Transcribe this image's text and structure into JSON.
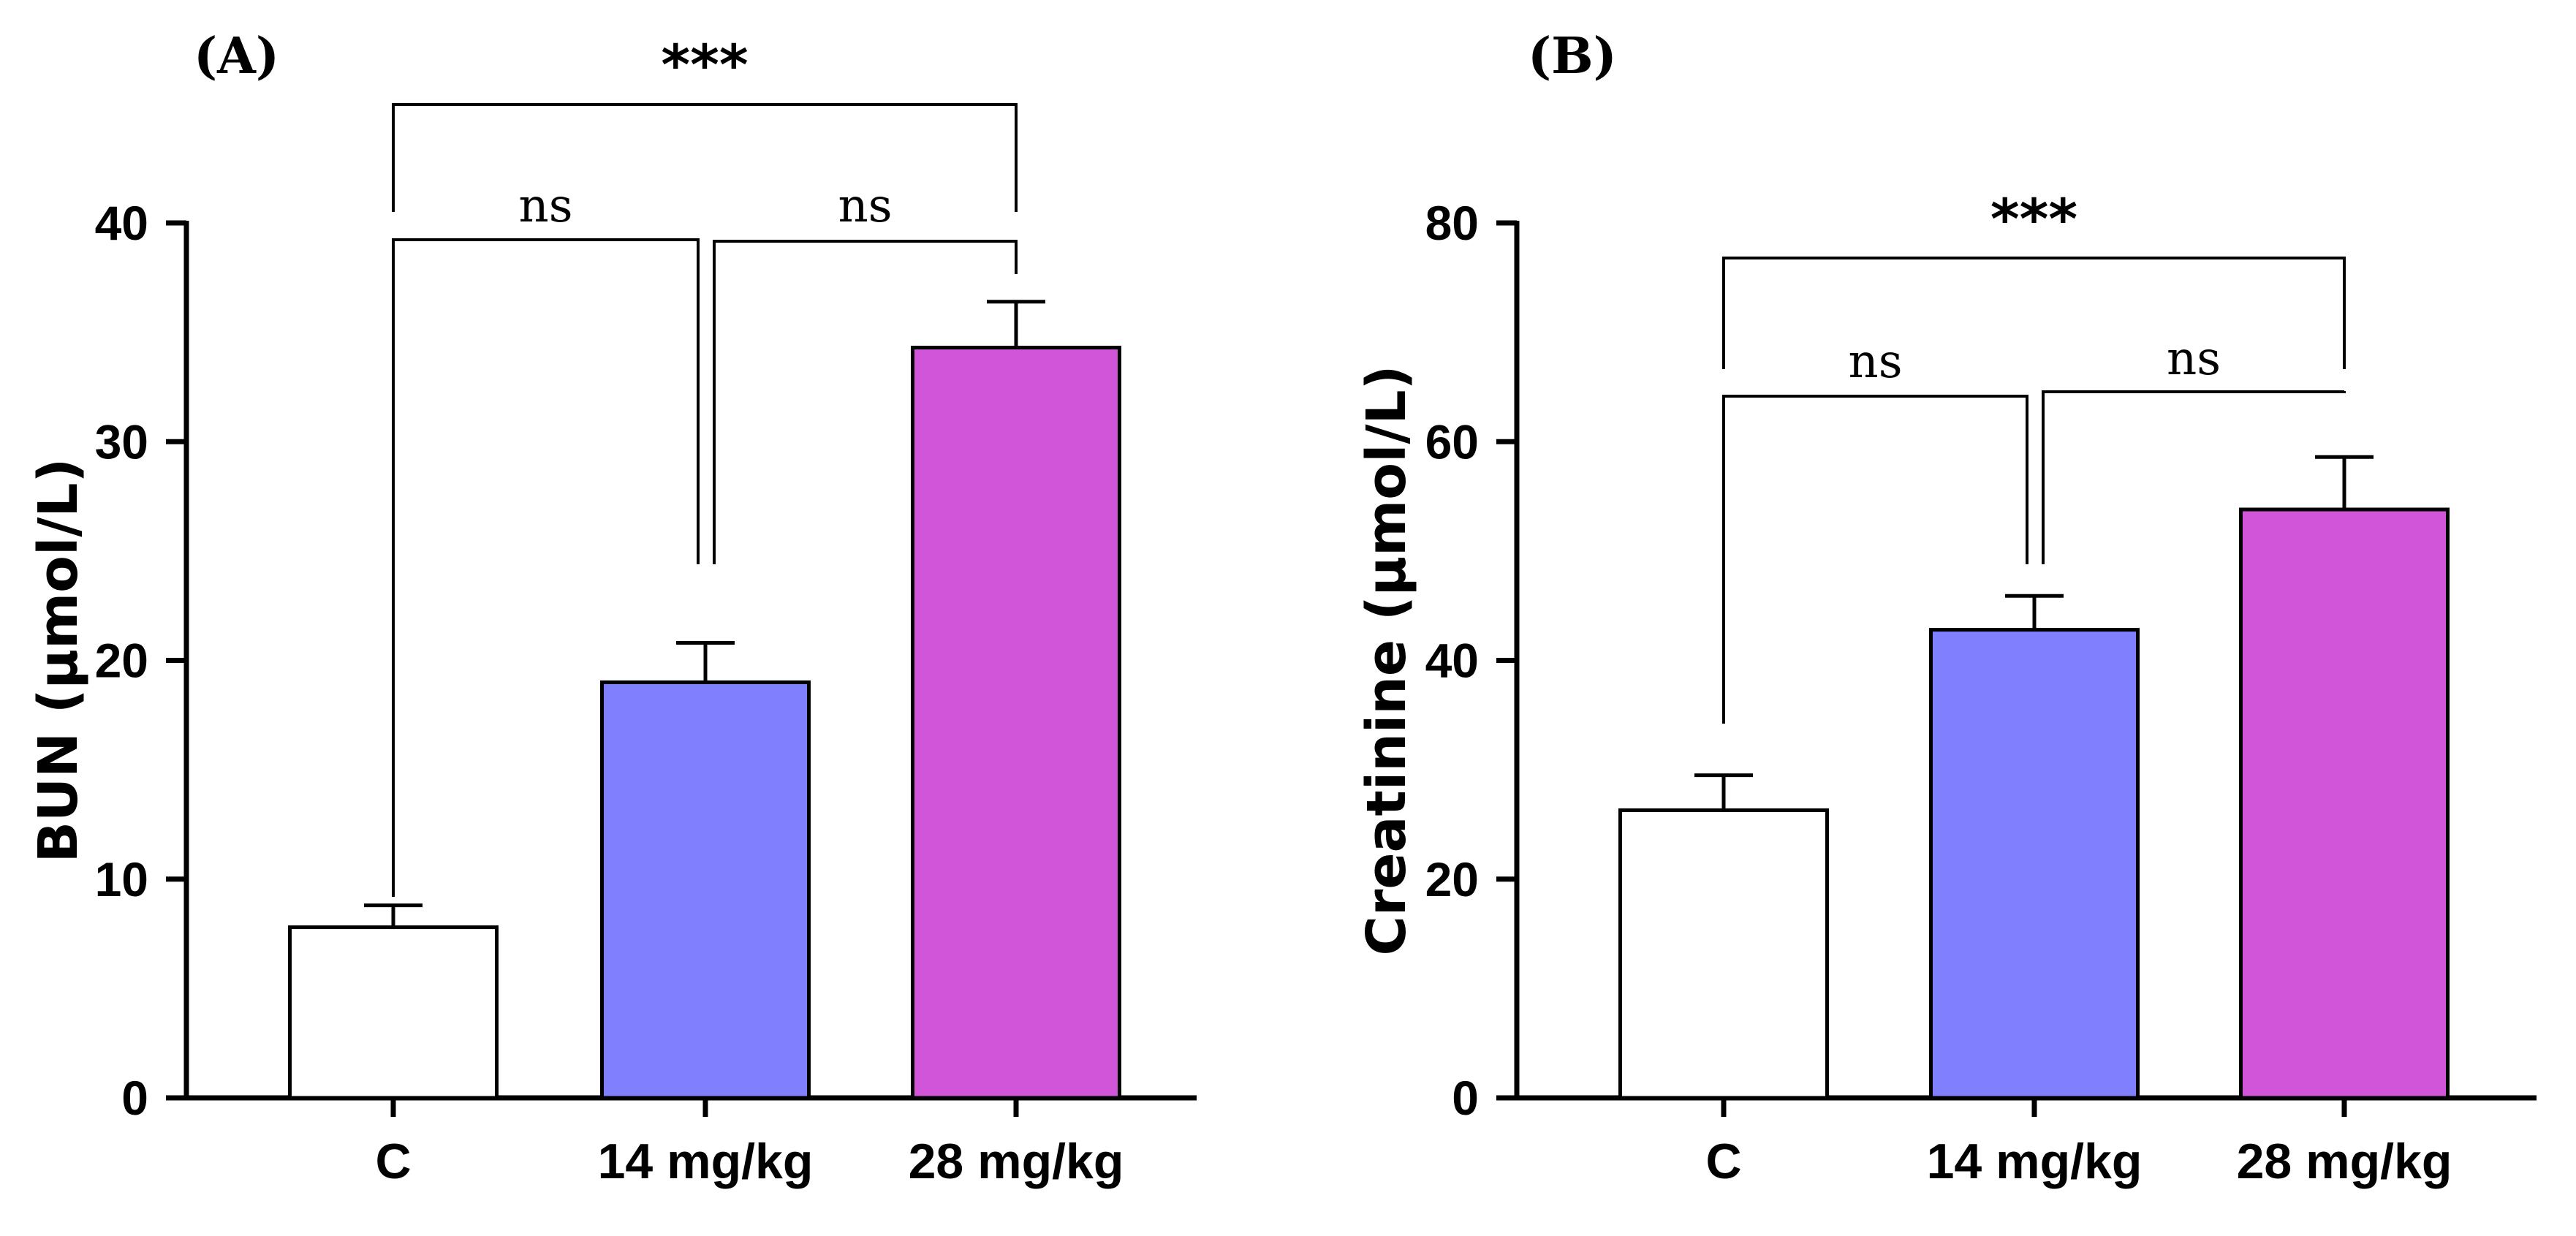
{
  "chart_data": [
    {
      "type": "bar",
      "panel_label": "(A)",
      "categories": [
        "C",
        "14 mg/kg",
        "28 mg/kg"
      ],
      "values": [
        7.8,
        19.0,
        34.3
      ],
      "errors": [
        1.0,
        1.8,
        2.1
      ],
      "colors": [
        "#ffffff",
        "#8080ff",
        "#d055d8"
      ],
      "title": "",
      "xlabel": "",
      "ylabel": "BUN (μmol/L)",
      "ylim": [
        0,
        40
      ],
      "yticks": [
        0,
        10,
        20,
        30,
        40
      ],
      "grid": false,
      "comparisons": [
        {
          "from": 0,
          "to": 1,
          "label": "ns"
        },
        {
          "from": 1,
          "to": 2,
          "label": "ns"
        },
        {
          "from": 0,
          "to": 2,
          "label": "***"
        }
      ]
    },
    {
      "type": "bar",
      "panel_label": "(B)",
      "categories": [
        "C",
        "14 mg/kg",
        "28 mg/kg"
      ],
      "values": [
        26.3,
        42.8,
        53.8
      ],
      "errors": [
        3.2,
        3.1,
        4.8
      ],
      "colors": [
        "#ffffff",
        "#8080ff",
        "#d055d8"
      ],
      "title": "",
      "xlabel": "",
      "ylabel": "Creatinine (μmol/L)",
      "ylim": [
        0,
        80
      ],
      "yticks": [
        0,
        20,
        40,
        60,
        80
      ],
      "grid": false,
      "comparisons": [
        {
          "from": 0,
          "to": 1,
          "label": "ns"
        },
        {
          "from": 1,
          "to": 2,
          "label": "ns"
        },
        {
          "from": 0,
          "to": 2,
          "label": "***"
        }
      ]
    }
  ]
}
